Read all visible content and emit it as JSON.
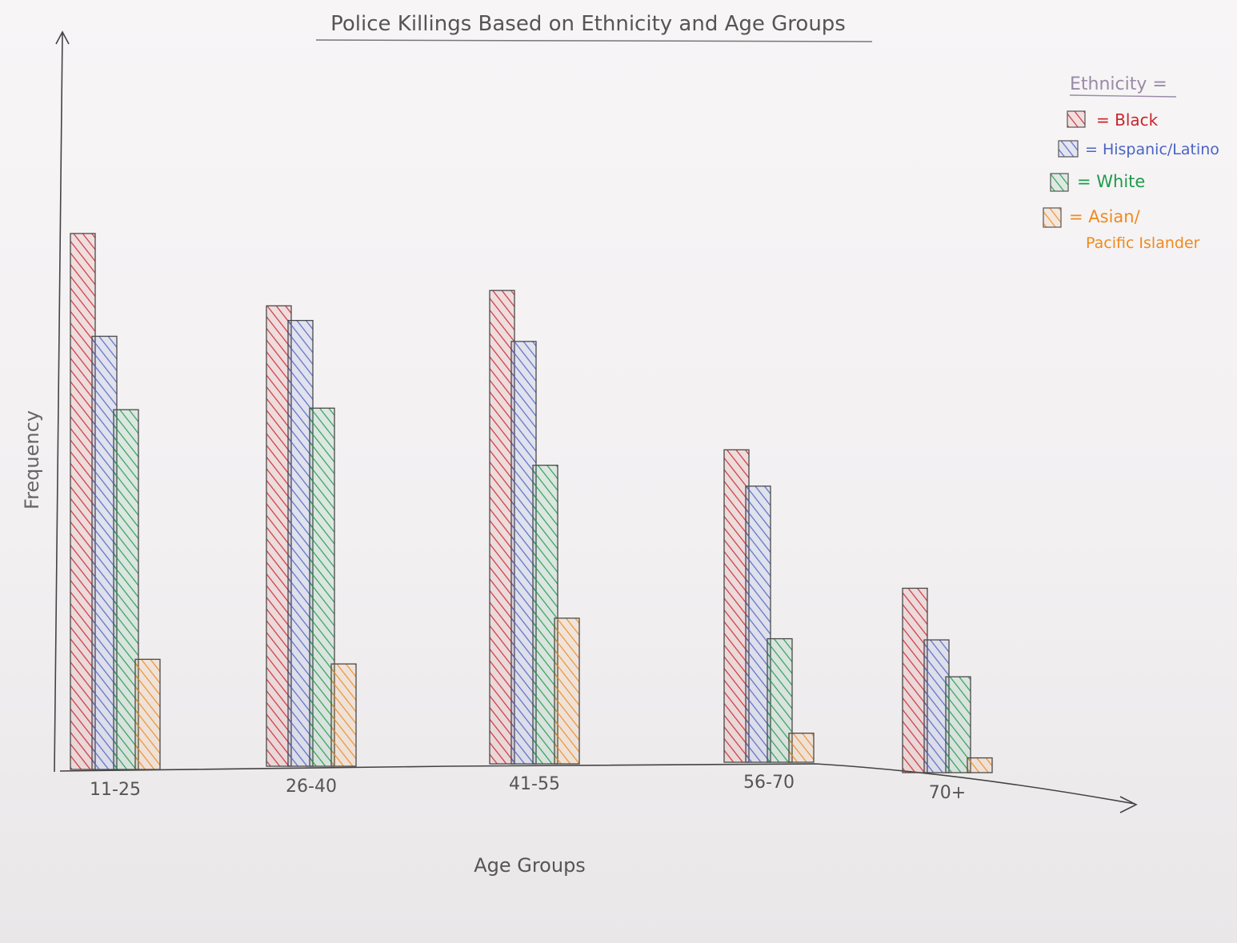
{
  "chart_data": {
    "type": "bar",
    "title": "Police Killings Based on Ethnicity and Age Groups",
    "xlabel": "Age Groups",
    "ylabel": "Frequency",
    "categories": [
      "11-25",
      "26-40",
      "41-55",
      "56-70",
      "70+"
    ],
    "legend_title": "Ethnicity =",
    "legend_position": "top-right",
    "series": [
      {
        "name": "Black",
        "color": "#c8262c",
        "values": [
          73,
          63,
          65,
          43,
          25
        ]
      },
      {
        "name": "Hispanic/Latino",
        "color": "#4a64c4",
        "values": [
          59,
          61,
          58,
          38,
          18
        ]
      },
      {
        "name": "White",
        "color": "#1f9a4c",
        "values": [
          49,
          49,
          41,
          17,
          13
        ]
      },
      {
        "name": "Asian/ Pacific Islander",
        "color": "#ee8a1f",
        "values": [
          15,
          14,
          20,
          4,
          2
        ]
      }
    ],
    "legend_labels": [
      "= Black",
      "= Hispanic/Latino",
      "= White",
      "= Asian/"
    ],
    "legend_label_line2": "Pacific Islander",
    "ylim": [
      0,
      95
    ],
    "y_ticks": false,
    "grid": false
  }
}
